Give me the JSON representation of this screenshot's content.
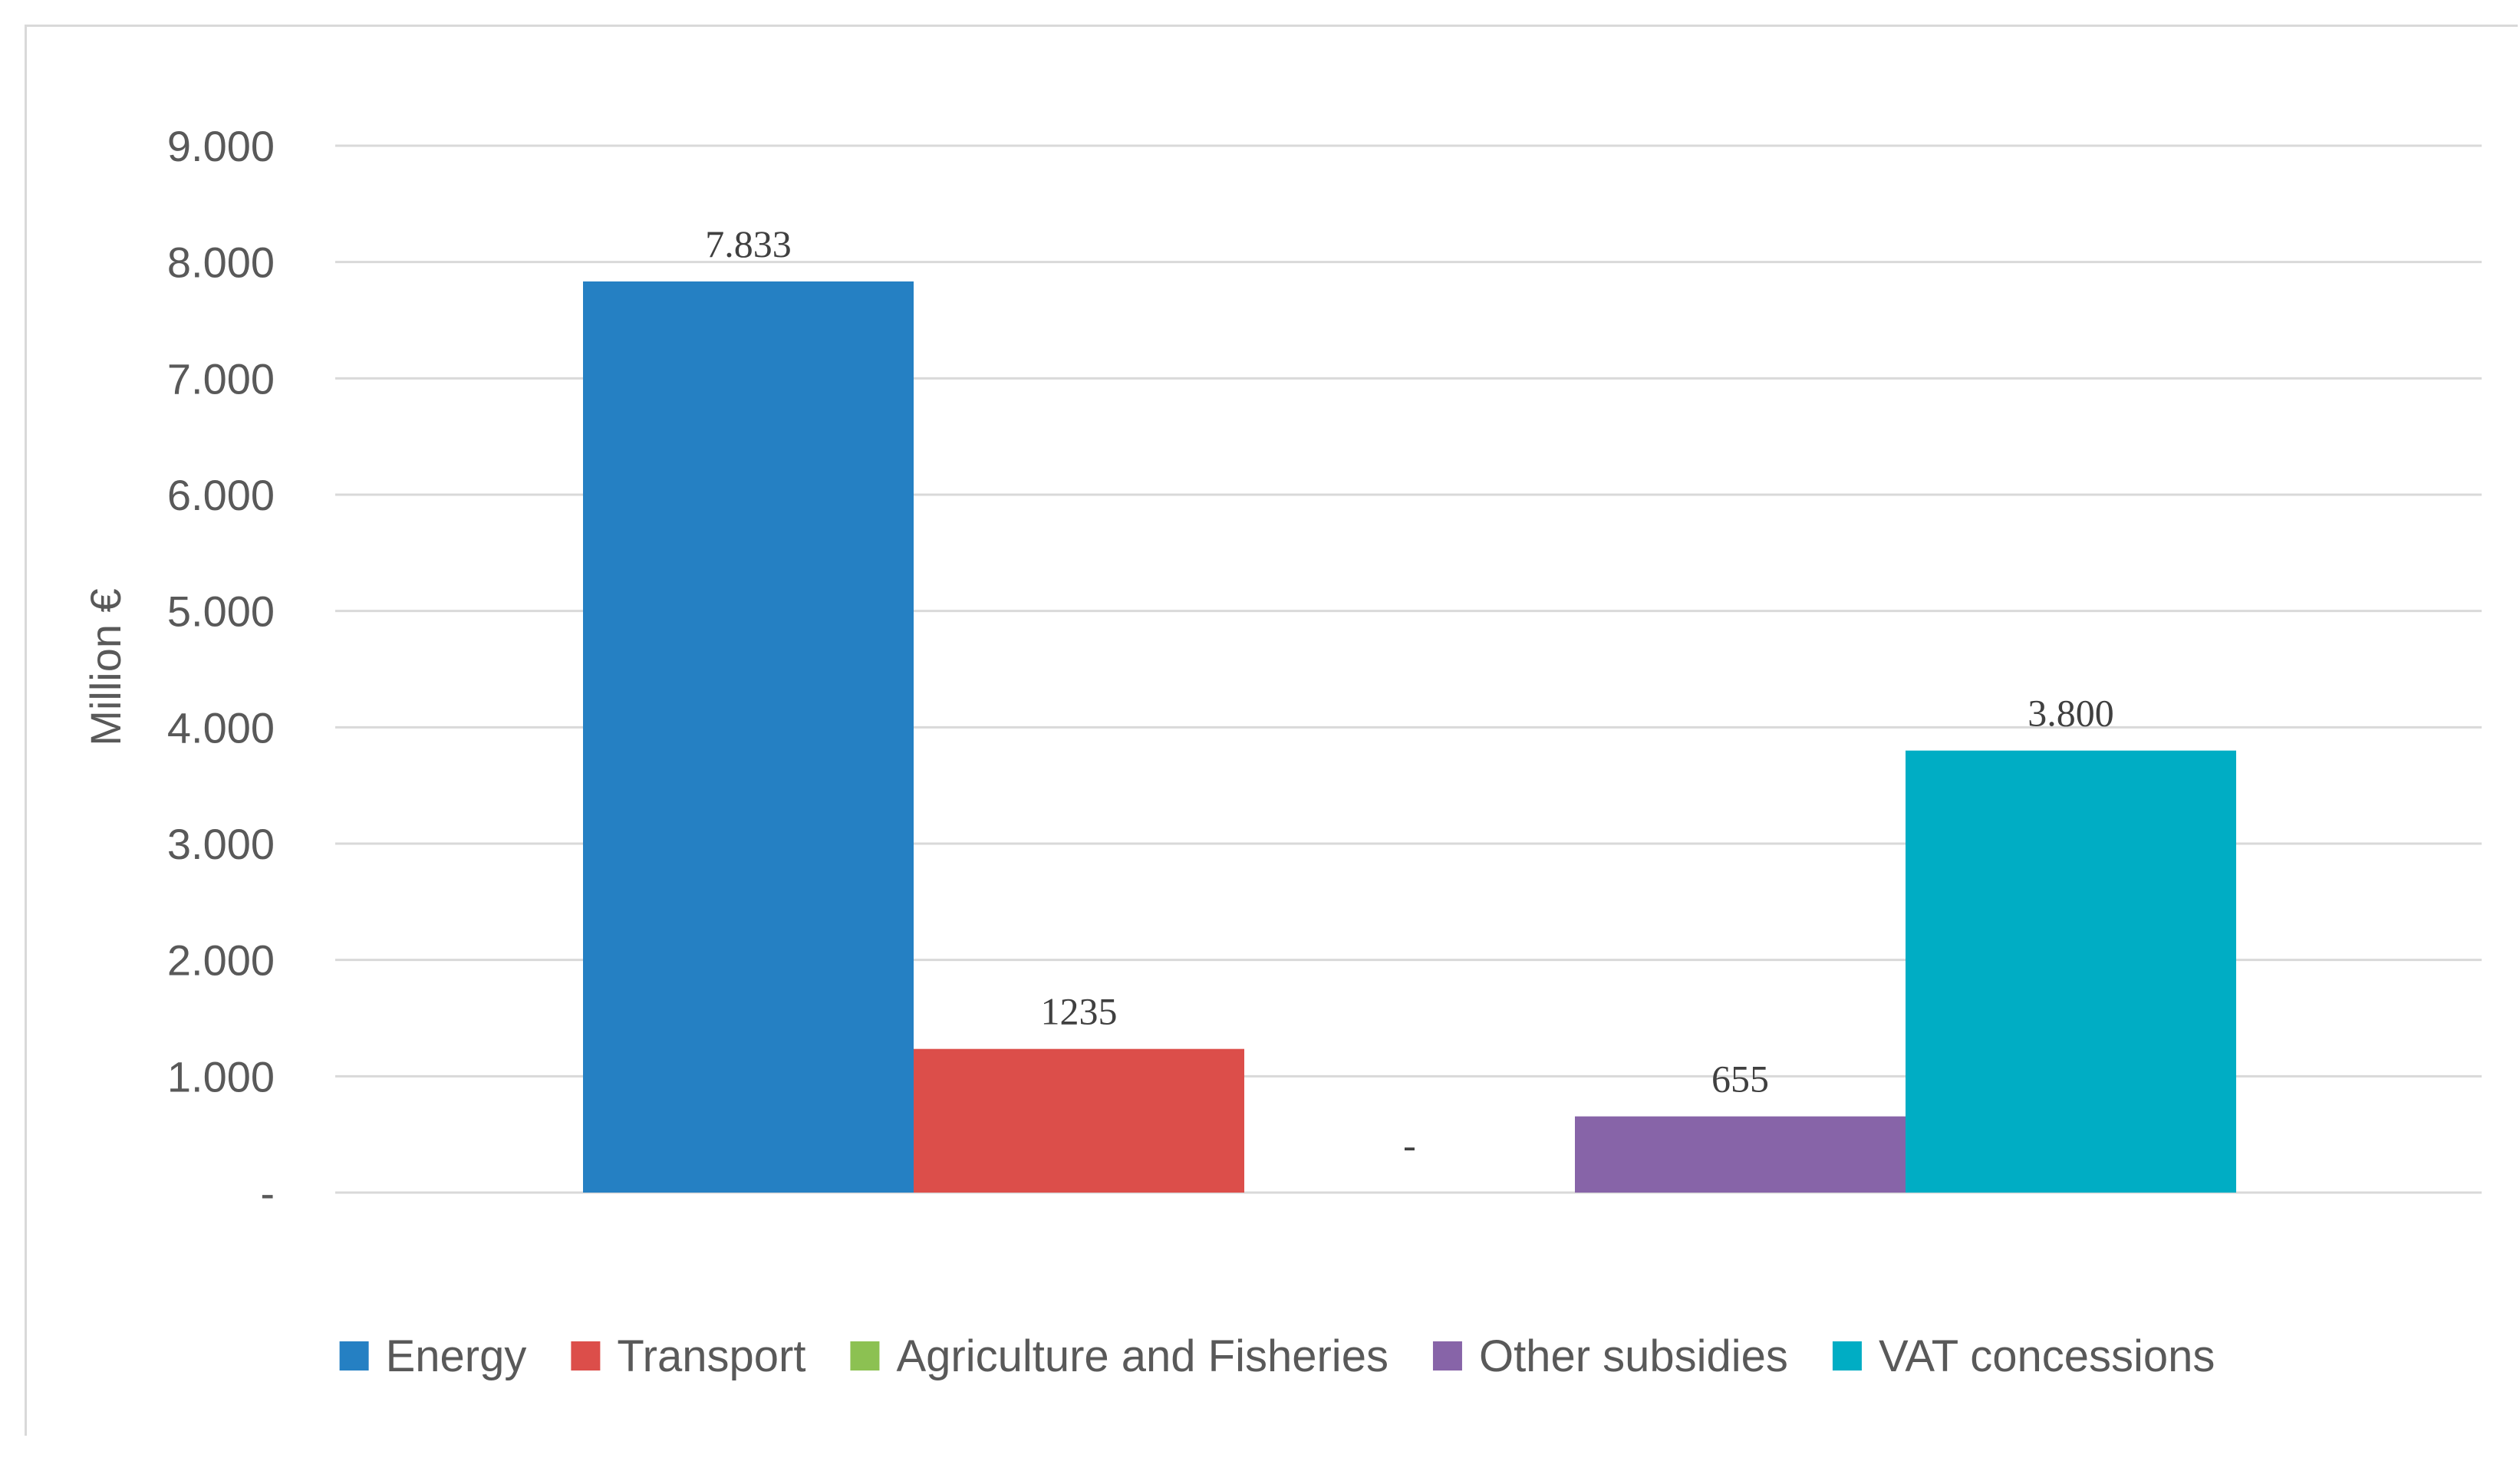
{
  "chart_data": {
    "type": "bar",
    "title": "",
    "xlabel": "",
    "ylabel": "Million €",
    "ylim": [
      0,
      9000
    ],
    "grid": true,
    "legend_position": "bottom",
    "y_ticks": [
      0,
      1000,
      2000,
      3000,
      4000,
      5000,
      6000,
      7000,
      8000,
      9000
    ],
    "y_tick_labels": [
      "-",
      "1.000",
      "2.000",
      "3.000",
      "4.000",
      "5.000",
      "6.000",
      "7.000",
      "8.000",
      "9.000"
    ],
    "series": [
      {
        "name": "Energy",
        "value": 7833,
        "label": "7.833",
        "color": "#2580c3"
      },
      {
        "name": "Transport",
        "value": 1235,
        "label": "1235",
        "color": "#dc4e4a"
      },
      {
        "name": "Agriculture and Fisheries",
        "value": 0,
        "label": "-",
        "color": "#8cc152"
      },
      {
        "name": "Other subsidies",
        "value": 655,
        "label": "655",
        "color": "#8764a8"
      },
      {
        "name": "VAT concessions",
        "value": 3800,
        "label": "3.800",
        "color": "#00adc4"
      }
    ]
  }
}
